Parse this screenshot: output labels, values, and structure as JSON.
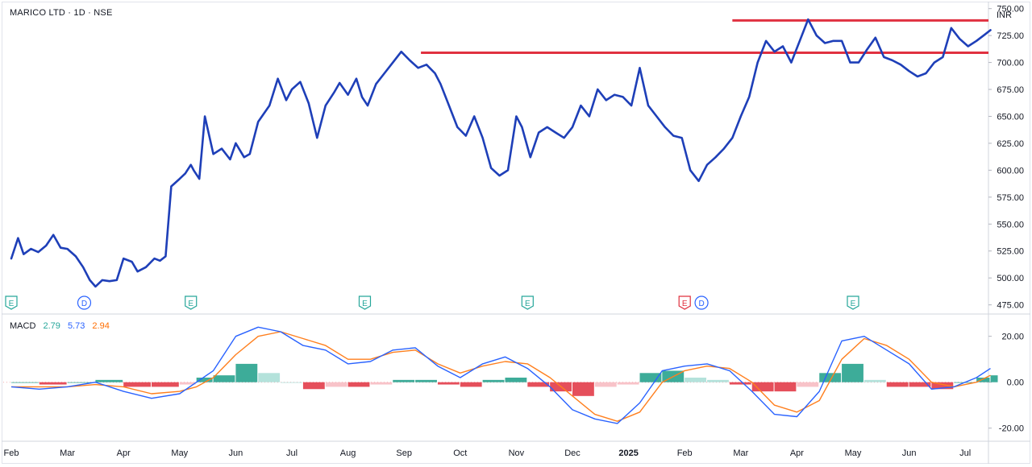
{
  "header": {
    "symbol": "MARICO LTD",
    "sep1": " · ",
    "interval": "1D",
    "sep2": " · ",
    "exchange": "NSE"
  },
  "currency": "INR",
  "colors": {
    "price_line": "#1e3fb8",
    "resistance": "#e03140",
    "macd_line": "#2962ff",
    "signal_line": "#ff7f1e",
    "hist_pos_strong": "#1b9e87",
    "hist_pos_weak": "#a7ddd5",
    "hist_neg_strong": "#e0303e",
    "hist_neg_weak": "#f7b9bf",
    "event_earnings": "#26a69a",
    "event_dividend": "#2962ff",
    "event_earnings_alert": "#e0303e"
  },
  "macd_legend": {
    "label": "MACD",
    "histogram": "2.79",
    "macd": "5.73",
    "signal": "2.94"
  },
  "events": [
    {
      "label": "E",
      "month_pos": 0.0,
      "type": "earnings"
    },
    {
      "label": "D",
      "month_pos": 1.3,
      "type": "dividend"
    },
    {
      "label": "E",
      "month_pos": 3.2,
      "type": "earnings"
    },
    {
      "label": "E",
      "month_pos": 6.3,
      "type": "earnings"
    },
    {
      "label": "E",
      "month_pos": 9.2,
      "type": "earnings"
    },
    {
      "label": "E",
      "month_pos": 12.0,
      "type": "earnings_alert"
    },
    {
      "label": "D",
      "month_pos": 12.3,
      "type": "dividend"
    },
    {
      "label": "E",
      "month_pos": 15.0,
      "type": "earnings"
    }
  ],
  "chart_data": [
    {
      "type": "line",
      "title": "MARICO LTD · 1D · NSE",
      "xlabel": "",
      "ylabel": "",
      "x_axis": {
        "ticks": [
          "Feb",
          "Mar",
          "Apr",
          "May",
          "Jun",
          "Jul",
          "Aug",
          "Sep",
          "Oct",
          "Nov",
          "Dec",
          "2025",
          "Feb",
          "Mar",
          "Apr",
          "May",
          "Jun",
          "Jul"
        ],
        "bold_ticks": [
          "2025"
        ]
      },
      "y_axis": {
        "ticks": [
          "750.00",
          "725.00",
          "700.00",
          "675.00",
          "650.00",
          "625.00",
          "600.00",
          "575.00",
          "550.00",
          "525.00",
          "500.00",
          "475.00"
        ],
        "range": [
          468,
          755
        ],
        "position": "right"
      },
      "series": [
        {
          "name": "",
          "x": [
            0.0,
            0.12,
            0.22,
            0.35,
            0.48,
            0.62,
            0.75,
            0.88,
            1.0,
            1.15,
            1.28,
            1.4,
            1.5,
            1.62,
            1.75,
            1.88,
            2.0,
            2.15,
            2.25,
            2.4,
            2.55,
            2.65,
            2.75,
            2.85,
            3.0,
            3.1,
            3.2,
            3.25,
            3.35,
            3.45,
            3.6,
            3.75,
            3.9,
            4.0,
            4.15,
            4.25,
            4.4,
            4.6,
            4.75,
            4.9,
            5.0,
            5.15,
            5.3,
            5.45,
            5.6,
            5.75,
            5.85,
            6.0,
            6.15,
            6.25,
            6.35,
            6.5,
            6.65,
            6.8,
            6.95,
            7.1,
            7.25,
            7.4,
            7.55,
            7.65,
            7.8,
            7.95,
            8.1,
            8.25,
            8.4,
            8.55,
            8.7,
            8.85,
            9.0,
            9.1,
            9.25,
            9.4,
            9.55,
            9.7,
            9.85,
            10.0,
            10.15,
            10.3,
            10.45,
            10.6,
            10.75,
            10.9,
            11.05,
            11.2,
            11.35,
            11.5,
            11.65,
            11.8,
            11.95,
            12.1,
            12.25,
            12.4,
            12.55,
            12.7,
            12.85,
            13.0,
            13.15,
            13.3,
            13.45,
            13.6,
            13.75,
            13.9,
            14.05,
            14.2,
            14.35,
            14.5,
            14.65,
            14.8,
            14.95,
            15.1,
            15.25,
            15.4,
            15.55,
            15.7,
            15.85,
            16.0,
            16.15,
            16.3,
            16.45,
            16.6,
            16.75,
            16.9,
            17.05,
            17.2,
            17.35,
            17.45
          ],
          "y": [
            518,
            537,
            522,
            527,
            524,
            530,
            540,
            528,
            527,
            520,
            510,
            498,
            492,
            498,
            497,
            498,
            518,
            515,
            506,
            510,
            518,
            516,
            520,
            585,
            592,
            597,
            605,
            600,
            592,
            650,
            615,
            620,
            610,
            625,
            612,
            615,
            645,
            660,
            685,
            665,
            675,
            682,
            662,
            630,
            660,
            672,
            681,
            670,
            685,
            668,
            660,
            680,
            690,
            700,
            710,
            702,
            695,
            698,
            690,
            680,
            660,
            640,
            632,
            650,
            630,
            602,
            595,
            600,
            650,
            640,
            612,
            635,
            640,
            635,
            630,
            640,
            660,
            650,
            675,
            665,
            670,
            668,
            660,
            695,
            660,
            650,
            640,
            632,
            630,
            600,
            590,
            605,
            612,
            620,
            630,
            650,
            668,
            700,
            720,
            710,
            715,
            700,
            720,
            740,
            725,
            718,
            720,
            720,
            700,
            700,
            712,
            723,
            705,
            702,
            698,
            692,
            687,
            690,
            700,
            705,
            732,
            722,
            715,
            720,
            726,
            730
          ]
        },
        {
          "name": "",
          "type": "hline",
          "y": 709,
          "x_start": 7.3,
          "x_end": 17.6
        },
        {
          "name": "",
          "type": "hline",
          "y": 739,
          "x_start": 12.85,
          "x_end": 17.6
        }
      ]
    },
    {
      "type": "bar",
      "title": "MACD",
      "xlabel": "",
      "ylabel": "",
      "y_axis": {
        "ticks": [
          "20.00",
          "0.00",
          "-20.00"
        ],
        "range": [
          -25,
          29
        ],
        "position": "right"
      },
      "x": [
        0.0,
        0.5,
        1.0,
        1.5,
        2.0,
        2.5,
        3.0,
        3.3,
        3.6,
        4.0,
        4.4,
        4.8,
        5.2,
        5.6,
        6.0,
        6.4,
        6.8,
        7.2,
        7.6,
        8.0,
        8.4,
        8.8,
        9.2,
        9.6,
        10.0,
        10.4,
        10.8,
        11.2,
        11.6,
        12.0,
        12.4,
        12.8,
        13.2,
        13.6,
        14.0,
        14.4,
        14.8,
        15.2,
        15.6,
        16.0,
        16.4,
        16.8,
        17.2,
        17.45
      ],
      "series": [
        {
          "name": "",
          "type": "line",
          "values": [
            -2,
            -3,
            -2,
            0,
            -4,
            -7,
            -5,
            0,
            5,
            20,
            24,
            22,
            16,
            14,
            8,
            9,
            14,
            15,
            7,
            2,
            8,
            11,
            6,
            -2,
            -12,
            -16,
            -18,
            -9,
            5,
            7,
            8,
            5,
            -4,
            -14,
            -15,
            -4,
            18,
            20,
            14,
            8,
            -3,
            -2,
            2,
            6
          ]
        },
        {
          "name": "",
          "type": "line",
          "values": [
            -2,
            -2,
            -2,
            -1,
            -2,
            -5,
            -4,
            -2,
            2,
            12,
            20,
            22,
            19,
            16,
            10,
            10,
            13,
            14,
            8,
            4,
            7,
            9,
            8,
            2,
            -6,
            -14,
            -17,
            -13,
            0,
            5,
            7,
            6,
            0,
            -10,
            -13,
            -8,
            10,
            19,
            16,
            10,
            0,
            -2,
            0,
            3
          ]
        },
        {
          "name": "",
          "type": "histogram",
          "values": [
            0,
            -1,
            0,
            1,
            -2,
            -2,
            -1,
            2,
            3,
            8,
            4,
            0,
            -3,
            -2,
            -2,
            -1,
            1,
            1,
            -1,
            -2,
            1,
            2,
            -2,
            -4,
            -6,
            -2,
            -1,
            4,
            5,
            2,
            1,
            -1,
            -4,
            -4,
            -2,
            4,
            8,
            1,
            -2,
            -2,
            -3,
            0,
            2,
            3
          ]
        }
      ]
    }
  ]
}
